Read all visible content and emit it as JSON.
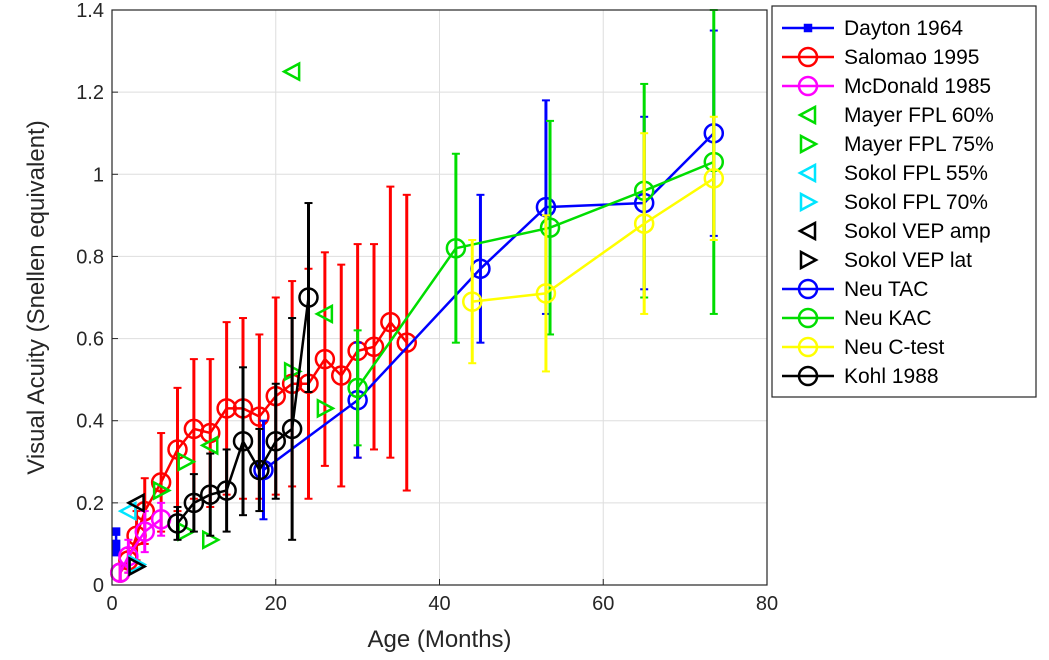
{
  "chart_data": {
    "type": "line",
    "title": "",
    "xlabel": "Age (Months)",
    "ylabel": "Visual Acuity (Snellen equivalent)",
    "xlim": [
      0,
      80
    ],
    "ylim": [
      0,
      1.4
    ],
    "xticks": [
      0,
      20,
      40,
      60,
      80
    ],
    "yticks": [
      0,
      0.2,
      0.4,
      0.6,
      0.8,
      1,
      1.2,
      1.4
    ],
    "xtick_labels": [
      "0",
      "20",
      "40",
      "60",
      "80"
    ],
    "ytick_labels": [
      "0",
      "0.2",
      "0.4",
      "0.6",
      "0.8",
      "1",
      "1.2",
      "1.4"
    ],
    "grid": true,
    "legend_position": "outside-right",
    "series": [
      {
        "name": "Dayton 1964",
        "color": "#0000ff",
        "marker": "square",
        "line": true,
        "points": [
          [
            0.5,
            0.13
          ],
          [
            0.5,
            0.1
          ],
          [
            0.5,
            0.08
          ]
        ],
        "err": [
          0,
          0,
          0
        ]
      },
      {
        "name": "Salomao 1995",
        "color": "#ff0000",
        "marker": "circle",
        "line": true,
        "points": [
          [
            1,
            0.03
          ],
          [
            2,
            0.06
          ],
          [
            3,
            0.12
          ],
          [
            4,
            0.18
          ],
          [
            6,
            0.25
          ],
          [
            8,
            0.33
          ],
          [
            10,
            0.38
          ],
          [
            12,
            0.37
          ],
          [
            14,
            0.43
          ],
          [
            16,
            0.43
          ],
          [
            18,
            0.41
          ],
          [
            20,
            0.46
          ],
          [
            22,
            0.49
          ],
          [
            24,
            0.49
          ],
          [
            26,
            0.55
          ],
          [
            28,
            0.51
          ],
          [
            30,
            0.57
          ],
          [
            32,
            0.58
          ],
          [
            34,
            0.64
          ],
          [
            36,
            0.59
          ]
        ],
        "err": [
          0.02,
          0.03,
          0.06,
          0.08,
          0.12,
          0.15,
          0.17,
          0.18,
          0.21,
          0.22,
          0.2,
          0.24,
          0.25,
          0.28,
          0.26,
          0.27,
          0.26,
          0.25,
          0.33,
          0.36
        ]
      },
      {
        "name": "McDonald 1985",
        "color": "#ff00ff",
        "marker": "circle",
        "line": true,
        "points": [
          [
            1,
            0.03
          ],
          [
            2,
            0.07
          ],
          [
            4,
            0.13
          ],
          [
            6,
            0.16
          ]
        ],
        "err": [
          0.02,
          0.04,
          0.05,
          0.04
        ]
      },
      {
        "name": "Mayer FPL 60%",
        "color": "#00dd00",
        "marker": "triangle-left",
        "line": false,
        "points": [
          [
            22,
            1.25
          ],
          [
            26,
            0.66
          ],
          [
            12,
            0.34
          ]
        ],
        "err": [
          0,
          0,
          0
        ]
      },
      {
        "name": "Mayer FPL 75%",
        "color": "#00dd00",
        "marker": "triangle-right",
        "line": false,
        "points": [
          [
            9,
            0.13
          ],
          [
            12,
            0.11
          ],
          [
            6,
            0.23
          ],
          [
            9,
            0.3
          ],
          [
            22,
            0.52
          ],
          [
            26,
            0.43
          ]
        ],
        "err": [
          0,
          0,
          0,
          0,
          0,
          0
        ]
      },
      {
        "name": "Sokol FPL 55%",
        "color": "#00e5ff",
        "marker": "triangle-left",
        "line": false,
        "points": [
          [
            2,
            0.18
          ]
        ],
        "err": [
          0
        ]
      },
      {
        "name": "Sokol FPL 70%",
        "color": "#00e5ff",
        "marker": "triangle-right",
        "line": false,
        "points": [
          [
            3,
            0.05
          ]
        ],
        "err": [
          0
        ]
      },
      {
        "name": "Sokol VEP amp",
        "color": "#000000",
        "marker": "triangle-left",
        "line": false,
        "points": [
          [
            3,
            0.2
          ]
        ],
        "err": [
          0
        ]
      },
      {
        "name": "Sokol VEP lat",
        "color": "#000000",
        "marker": "triangle-right",
        "line": false,
        "points": [
          [
            3,
            0.045
          ]
        ],
        "err": [
          0
        ]
      },
      {
        "name": "Neu TAC",
        "color": "#0000ff",
        "marker": "circle",
        "line": true,
        "points": [
          [
            18.5,
            0.28
          ],
          [
            30,
            0.45
          ],
          [
            45,
            0.77
          ],
          [
            53,
            0.92
          ],
          [
            65,
            0.93
          ],
          [
            73.5,
            1.1
          ]
        ],
        "err": [
          0.12,
          0.14,
          0.18,
          0.26,
          0.21,
          0.25
        ]
      },
      {
        "name": "Neu KAC",
        "color": "#00dd00",
        "marker": "circle",
        "line": true,
        "points": [
          [
            30,
            0.48
          ],
          [
            42,
            0.82
          ],
          [
            53.5,
            0.87
          ],
          [
            65,
            0.96
          ],
          [
            73.5,
            1.03
          ]
        ],
        "err": [
          0.14,
          0.23,
          0.26,
          0.26,
          0.37
        ]
      },
      {
        "name": "Neu C-test",
        "color": "#ffff00",
        "marker": "circle",
        "line": true,
        "points": [
          [
            44,
            0.69
          ],
          [
            53,
            0.71
          ],
          [
            65,
            0.88
          ],
          [
            73.5,
            0.99
          ]
        ],
        "err": [
          0.15,
          0.19,
          0.22,
          0.15
        ]
      },
      {
        "name": "Kohl 1988",
        "color": "#000000",
        "marker": "circle",
        "line": true,
        "points": [
          [
            8,
            0.15
          ],
          [
            10,
            0.2
          ],
          [
            12,
            0.22
          ],
          [
            14,
            0.23
          ],
          [
            16,
            0.35
          ],
          [
            18,
            0.28
          ],
          [
            20,
            0.35
          ],
          [
            22,
            0.38
          ],
          [
            24,
            0.7
          ]
        ],
        "err": [
          0.04,
          0.07,
          0.1,
          0.1,
          0.18,
          0.1,
          0.14,
          0.27,
          0.23
        ]
      }
    ]
  }
}
